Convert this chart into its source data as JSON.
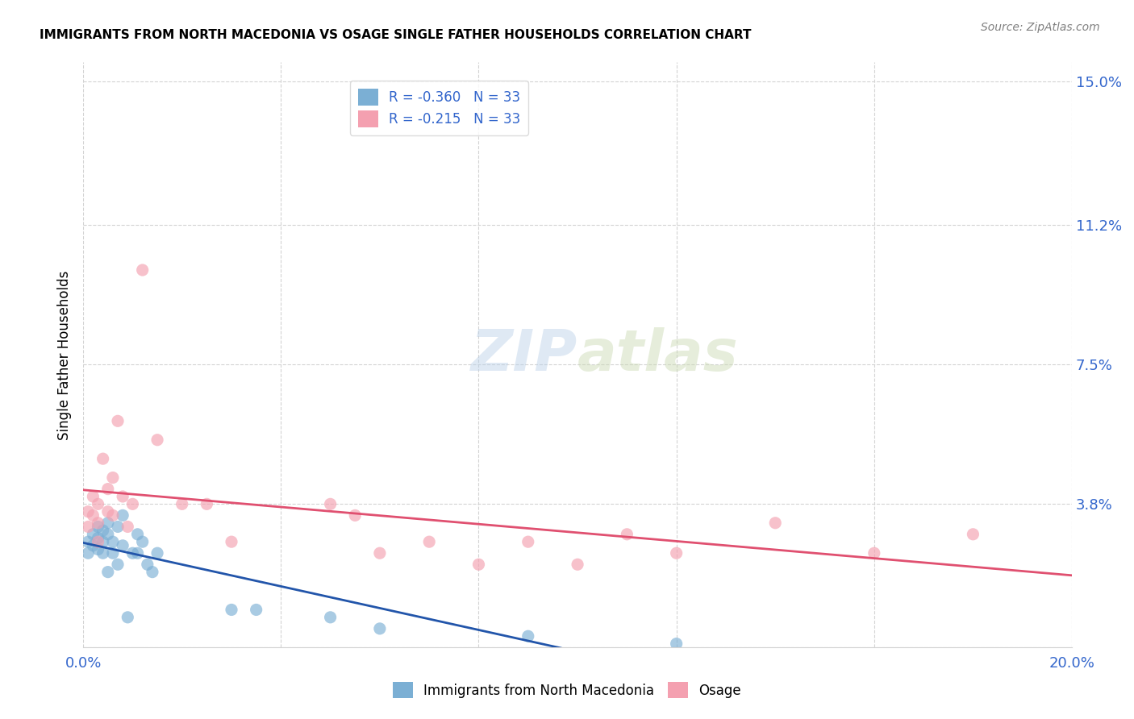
{
  "title": "IMMIGRANTS FROM NORTH MACEDONIA VS OSAGE SINGLE FATHER HOUSEHOLDS CORRELATION CHART",
  "source": "Source: ZipAtlas.com",
  "ylabel": "Single Father Households",
  "xlim": [
    0.0,
    0.2
  ],
  "ylim": [
    0.0,
    0.155
  ],
  "xtick_positions": [
    0.0,
    0.04,
    0.08,
    0.12,
    0.16,
    0.2
  ],
  "xtick_labels": [
    "0.0%",
    "",
    "",
    "",
    "",
    "20.0%"
  ],
  "ytick_right": [
    0.0,
    0.038,
    0.075,
    0.112,
    0.15
  ],
  "ytick_right_labels": [
    "",
    "3.8%",
    "7.5%",
    "11.2%",
    "15.0%"
  ],
  "blue_r": "-0.360",
  "blue_n": "33",
  "pink_r": "-0.215",
  "pink_n": "33",
  "blue_color": "#7bafd4",
  "pink_color": "#f4a0b0",
  "blue_line_color": "#2255aa",
  "pink_line_color": "#e05070",
  "blue_label": "Immigrants from North Macedonia",
  "pink_label": "Osage",
  "watermark_zip": "ZIP",
  "watermark_atlas": "atlas",
  "blue_points": [
    [
      0.001,
      0.028
    ],
    [
      0.001,
      0.025
    ],
    [
      0.002,
      0.03
    ],
    [
      0.002,
      0.027
    ],
    [
      0.003,
      0.032
    ],
    [
      0.003,
      0.029
    ],
    [
      0.003,
      0.026
    ],
    [
      0.004,
      0.031
    ],
    [
      0.004,
      0.028
    ],
    [
      0.004,
      0.025
    ],
    [
      0.005,
      0.033
    ],
    [
      0.005,
      0.03
    ],
    [
      0.005,
      0.02
    ],
    [
      0.006,
      0.028
    ],
    [
      0.006,
      0.025
    ],
    [
      0.007,
      0.032
    ],
    [
      0.007,
      0.022
    ],
    [
      0.008,
      0.035
    ],
    [
      0.008,
      0.027
    ],
    [
      0.009,
      0.008
    ],
    [
      0.01,
      0.025
    ],
    [
      0.011,
      0.03
    ],
    [
      0.011,
      0.025
    ],
    [
      0.012,
      0.028
    ],
    [
      0.013,
      0.022
    ],
    [
      0.014,
      0.02
    ],
    [
      0.015,
      0.025
    ],
    [
      0.03,
      0.01
    ],
    [
      0.035,
      0.01
    ],
    [
      0.05,
      0.008
    ],
    [
      0.06,
      0.005
    ],
    [
      0.09,
      0.003
    ],
    [
      0.12,
      0.001
    ]
  ],
  "pink_points": [
    [
      0.001,
      0.036
    ],
    [
      0.001,
      0.032
    ],
    [
      0.002,
      0.04
    ],
    [
      0.002,
      0.035
    ],
    [
      0.003,
      0.038
    ],
    [
      0.003,
      0.033
    ],
    [
      0.003,
      0.028
    ],
    [
      0.004,
      0.05
    ],
    [
      0.005,
      0.042
    ],
    [
      0.005,
      0.036
    ],
    [
      0.006,
      0.045
    ],
    [
      0.006,
      0.035
    ],
    [
      0.007,
      0.06
    ],
    [
      0.008,
      0.04
    ],
    [
      0.009,
      0.032
    ],
    [
      0.01,
      0.038
    ],
    [
      0.012,
      0.1
    ],
    [
      0.015,
      0.055
    ],
    [
      0.02,
      0.038
    ],
    [
      0.025,
      0.038
    ],
    [
      0.03,
      0.028
    ],
    [
      0.05,
      0.038
    ],
    [
      0.055,
      0.035
    ],
    [
      0.06,
      0.025
    ],
    [
      0.07,
      0.028
    ],
    [
      0.08,
      0.022
    ],
    [
      0.09,
      0.028
    ],
    [
      0.1,
      0.022
    ],
    [
      0.11,
      0.03
    ],
    [
      0.12,
      0.025
    ],
    [
      0.14,
      0.033
    ],
    [
      0.16,
      0.025
    ],
    [
      0.18,
      0.03
    ]
  ]
}
